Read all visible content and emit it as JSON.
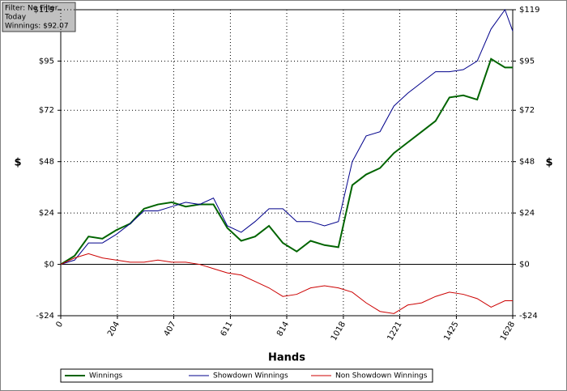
{
  "filter_box": {
    "lines": [
      "Filter: No Filter",
      "Today",
      "Winnings: $92.07"
    ]
  },
  "chart_data": {
    "type": "line",
    "x_label": "Hands",
    "y_label": "$",
    "y2_label": "$",
    "x": [
      0,
      50,
      100,
      150,
      200,
      250,
      300,
      350,
      400,
      450,
      500,
      550,
      600,
      650,
      700,
      750,
      800,
      850,
      900,
      950,
      1000,
      1050,
      1100,
      1150,
      1200,
      1250,
      1300,
      1350,
      1400,
      1450,
      1500,
      1550,
      1600,
      1628
    ],
    "series": [
      {
        "name": "Winnings",
        "color": "#006400",
        "values": [
          0,
          4,
          13,
          12,
          16,
          19,
          26,
          28,
          29,
          27,
          28,
          28,
          17,
          11,
          13,
          18,
          10,
          6,
          11,
          9,
          8,
          37,
          42,
          45,
          52,
          57,
          62,
          67,
          78,
          79,
          77,
          96,
          92,
          92
        ]
      },
      {
        "name": "Showdown Winnings",
        "color": "#00008b",
        "values": [
          0,
          2,
          10,
          10,
          14,
          19,
          25,
          25,
          27,
          29,
          28,
          31,
          18,
          15,
          20,
          26,
          26,
          20,
          20,
          18,
          20,
          48,
          60,
          62,
          74,
          80,
          85,
          90,
          90,
          91,
          95,
          110,
          119,
          109
        ]
      },
      {
        "name": "Non Showdown Winnings",
        "color": "#cc0000",
        "values": [
          0,
          3,
          5,
          3,
          2,
          1,
          1,
          2,
          1,
          1,
          0,
          -2,
          -4,
          -5,
          -8,
          -11,
          -15,
          -14,
          -11,
          -10,
          -11,
          -13,
          -18,
          -22,
          -23,
          -19,
          -18,
          -15,
          -13,
          -14,
          -16,
          -20,
          -17,
          -17
        ]
      }
    ],
    "xlim": [
      0,
      1628
    ],
    "xticks": [
      0,
      204,
      407,
      611,
      814,
      1018,
      1221,
      1425,
      1628
    ],
    "ylim": [
      -24,
      119
    ],
    "yticks": [
      {
        "value": -24,
        "label": "-$24"
      },
      {
        "value": 0,
        "label": "$0"
      },
      {
        "value": 24,
        "label": "$24"
      },
      {
        "value": 48,
        "label": "$48"
      },
      {
        "value": 72,
        "label": "$72"
      },
      {
        "value": 95,
        "label": "$95"
      },
      {
        "value": 119,
        "label": "$119"
      }
    ],
    "grid": true,
    "legend": "bottom"
  }
}
